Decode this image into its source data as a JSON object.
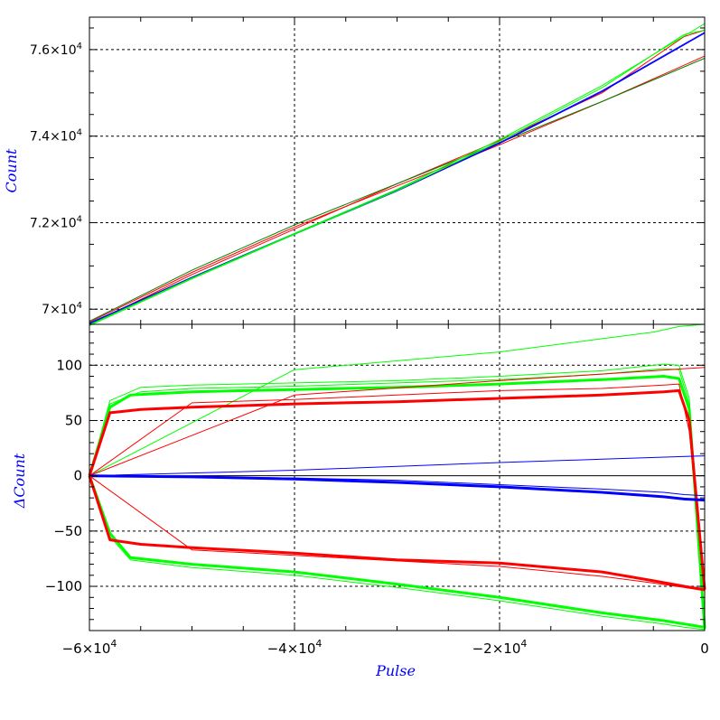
{
  "chart_data": [
    {
      "type": "line",
      "panel": "top",
      "xlabel": "",
      "ylabel": "Count",
      "xlim": [
        -60000,
        0
      ],
      "ylim": [
        69650,
        76750
      ],
      "yticks": [
        70000,
        72000,
        74000,
        76000
      ],
      "ytick_labels": [
        {
          "mant": "7",
          "exp": "4"
        },
        {
          "mant": "7.2",
          "exp": "4"
        },
        {
          "mant": "7.4",
          "exp": "4"
        },
        {
          "mant": "7.6",
          "exp": "4"
        }
      ],
      "xticks": [
        -60000,
        -40000,
        -20000,
        0
      ],
      "grid": true,
      "series": [
        {
          "color": "#ff0000",
          "x": [
            -60000,
            -50000,
            -40000,
            -30000,
            -20000,
            -10000,
            0
          ],
          "y": [
            69700,
            70850,
            71900,
            72850,
            73800,
            74800,
            75850
          ]
        },
        {
          "color": "#ff0000",
          "x": [
            -60000,
            -50000,
            -40000,
            -30000,
            -20000,
            -10000,
            -2000,
            0
          ],
          "y": [
            69650,
            70800,
            71850,
            72900,
            73900,
            75000,
            76300,
            76450
          ]
        },
        {
          "color": "#008000",
          "x": [
            -60000,
            -50000,
            -40000,
            -30000,
            -20000,
            -10000,
            0
          ],
          "y": [
            69720,
            70900,
            71950,
            72900,
            73850,
            74800,
            75800
          ]
        },
        {
          "color": "#0000ff",
          "x": [
            -60000,
            -50000,
            -40000,
            -30000,
            -20000,
            -10000,
            0
          ],
          "y": [
            69680,
            70740,
            71750,
            72750,
            73850,
            75050,
            76400
          ]
        },
        {
          "color": "#0000ff",
          "x": [
            -60000,
            -50000,
            -40000,
            -30000,
            -20000,
            -10000,
            0
          ],
          "y": [
            69660,
            70720,
            71730,
            72730,
            73830,
            75030,
            76380
          ]
        },
        {
          "color": "#00ff00",
          "x": [
            -60000,
            -50000,
            -40000,
            -30000,
            -20000,
            -10000,
            0
          ],
          "y": [
            69640,
            70720,
            71750,
            72770,
            73920,
            75170,
            76600
          ]
        },
        {
          "color": "#00ff00",
          "x": [
            -60000,
            -50000,
            -40000,
            -30000,
            -20000,
            -10000,
            -2000,
            0
          ],
          "y": [
            69620,
            70700,
            71730,
            72740,
            73880,
            75120,
            76350,
            76450
          ]
        }
      ]
    },
    {
      "type": "line",
      "panel": "bottom",
      "xlabel": "Pulse",
      "ylabel": "ΔCount",
      "xlim": [
        -60000,
        0
      ],
      "ylim": [
        -140,
        137
      ],
      "yticks": [
        -100,
        -50,
        0,
        50,
        100
      ],
      "ytick_labels": [
        "−100",
        "−50",
        "0",
        "50",
        "100"
      ],
      "xticks": [
        -60000,
        -40000,
        -20000,
        0
      ],
      "xtick_labels": [
        {
          "mant": "−6×10",
          "exp": "4"
        },
        {
          "mant": "−4×10",
          "exp": "4"
        },
        {
          "mant": "−2×10",
          "exp": "4"
        },
        {
          "mant": "0",
          "exp": ""
        }
      ],
      "grid": true,
      "series": [
        {
          "color": "#00ff00",
          "width": 3,
          "x": [
            -60000,
            -58000,
            -56000,
            -50000,
            -40000,
            -30000,
            -20000,
            -10000,
            -4000,
            -2500,
            -1500,
            0
          ],
          "y": [
            0,
            62,
            73,
            76,
            78,
            80,
            83,
            87,
            90,
            88,
            60,
            -138
          ]
        },
        {
          "color": "#00ff00",
          "width": 1,
          "x": [
            -60000,
            -58000,
            -55000,
            -50000,
            -40000,
            -30000,
            -20000,
            -10000,
            -4000,
            -2500,
            -1500,
            0
          ],
          "y": [
            0,
            68,
            80,
            82,
            84,
            86,
            90,
            95,
            101,
            100,
            70,
            -138
          ]
        },
        {
          "color": "#00ff00",
          "width": 1,
          "x": [
            -60000,
            -58000,
            -55000,
            -50000,
            -40000,
            -30000,
            -20000,
            -10000,
            -4000,
            -2500,
            -1500,
            0
          ],
          "y": [
            0,
            65,
            76,
            79,
            81,
            84,
            87,
            92,
            97,
            96,
            65,
            -138
          ]
        },
        {
          "color": "#00ff00",
          "width": 1,
          "x": [
            -60000,
            -40000,
            -20000,
            -10000,
            -5000,
            -2500,
            0
          ],
          "y": [
            0,
            96,
            112,
            124,
            130,
            135,
            137
          ]
        },
        {
          "color": "#ff0000",
          "width": 3,
          "x": [
            -60000,
            -58000,
            -55000,
            -50000,
            -40000,
            -30000,
            -20000,
            -10000,
            -4000,
            -2500,
            -1500,
            0
          ],
          "y": [
            0,
            57,
            60,
            62,
            65,
            67,
            70,
            73,
            76,
            77,
            50,
            -103
          ]
        },
        {
          "color": "#ff0000",
          "width": 1,
          "x": [
            -60000,
            -50000,
            -40000,
            -30000,
            -20000,
            -10000,
            -4000,
            -2500,
            -1500,
            0
          ],
          "y": [
            0,
            66,
            69,
            73,
            77,
            79,
            82,
            83,
            40,
            -103
          ]
        },
        {
          "color": "#ff0000",
          "width": 1,
          "x": [
            -60000,
            -40000,
            -20000,
            -5000,
            0
          ],
          "y": [
            0,
            73,
            86,
            95,
            98
          ]
        },
        {
          "color": "#0000ff",
          "width": 3,
          "x": [
            -60000,
            -50000,
            -40000,
            -30000,
            -20000,
            -10000,
            -4000,
            -2000,
            0
          ],
          "y": [
            0,
            -1,
            -3,
            -6,
            -10,
            -15,
            -19,
            -21,
            -22
          ]
        },
        {
          "color": "#0000ff",
          "width": 1,
          "x": [
            -60000,
            -50000,
            -40000,
            -30000,
            -20000,
            -10000,
            -4000,
            -2000,
            0
          ],
          "y": [
            0,
            -1,
            -2,
            -4,
            -8,
            -12,
            -15,
            -17,
            -18
          ]
        },
        {
          "color": "#0000ff",
          "width": 1,
          "x": [
            -60000,
            -40000,
            -20000,
            -10000,
            0
          ],
          "y": [
            0,
            5,
            12,
            15,
            18
          ]
        },
        {
          "color": "#00ff00",
          "width": 3,
          "x": [
            -60000,
            -58000,
            -56000,
            -50000,
            -40000,
            -30000,
            -20000,
            -10000,
            -4000,
            -2000,
            0
          ],
          "y": [
            0,
            -52,
            -74,
            -80,
            -87,
            -98,
            -110,
            -124,
            -131,
            -134,
            -137
          ]
        },
        {
          "color": "#00ff00",
          "width": 1,
          "x": [
            -60000,
            -58000,
            -56000,
            -50000,
            -40000,
            -30000,
            -20000,
            -10000,
            -4000,
            -2000,
            0
          ],
          "y": [
            0,
            -55,
            -76,
            -83,
            -90,
            -101,
            -113,
            -127,
            -134,
            -137,
            -139
          ]
        },
        {
          "color": "#ff0000",
          "width": 3,
          "x": [
            -60000,
            -58000,
            -55000,
            -50000,
            -40000,
            -30000,
            -20000,
            -10000,
            -5000,
            -2000,
            0
          ],
          "y": [
            0,
            -58,
            -62,
            -65,
            -70,
            -76,
            -79,
            -87,
            -95,
            -100,
            -103
          ]
        },
        {
          "color": "#ff0000",
          "width": 1,
          "x": [
            -60000,
            -50000,
            -40000,
            -30000,
            -20000,
            -10000,
            -5000,
            -2000,
            0
          ],
          "y": [
            0,
            -67,
            -72,
            -77,
            -82,
            -91,
            -97,
            -101,
            -104
          ]
        }
      ]
    }
  ]
}
